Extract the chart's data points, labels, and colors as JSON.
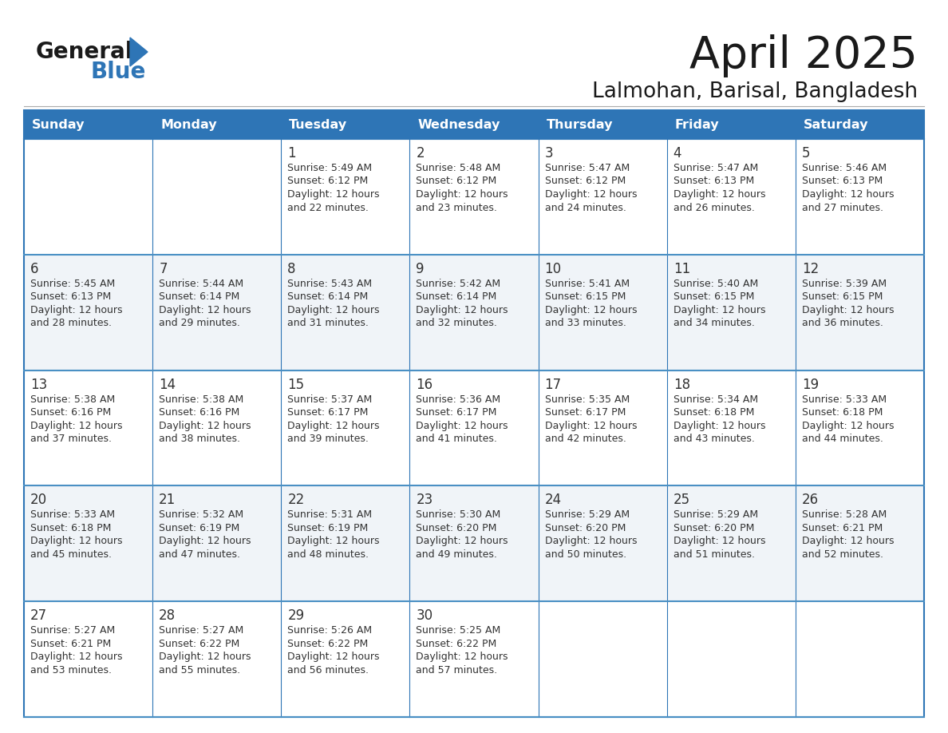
{
  "title": "April 2025",
  "subtitle": "Lalmohan, Barisal, Bangladesh",
  "days_of_week": [
    "Sunday",
    "Monday",
    "Tuesday",
    "Wednesday",
    "Thursday",
    "Friday",
    "Saturday"
  ],
  "header_bg_color": "#2E75B6",
  "header_text_color": "#FFFFFF",
  "cell_bg_even": "#FFFFFF",
  "cell_bg_odd": "#F0F4F8",
  "border_color": "#2E75B6",
  "row_divider_color": "#4A90C4",
  "text_color": "#333333",
  "title_color": "#1a1a1a",
  "logo_general_color": "#1a1a1a",
  "logo_blue_color": "#2E75B6",
  "calendar_data": [
    [
      {
        "day": null,
        "info": null
      },
      {
        "day": null,
        "info": null
      },
      {
        "day": 1,
        "info": "Sunrise: 5:49 AM\nSunset: 6:12 PM\nDaylight: 12 hours\nand 22 minutes."
      },
      {
        "day": 2,
        "info": "Sunrise: 5:48 AM\nSunset: 6:12 PM\nDaylight: 12 hours\nand 23 minutes."
      },
      {
        "day": 3,
        "info": "Sunrise: 5:47 AM\nSunset: 6:12 PM\nDaylight: 12 hours\nand 24 minutes."
      },
      {
        "day": 4,
        "info": "Sunrise: 5:47 AM\nSunset: 6:13 PM\nDaylight: 12 hours\nand 26 minutes."
      },
      {
        "day": 5,
        "info": "Sunrise: 5:46 AM\nSunset: 6:13 PM\nDaylight: 12 hours\nand 27 minutes."
      }
    ],
    [
      {
        "day": 6,
        "info": "Sunrise: 5:45 AM\nSunset: 6:13 PM\nDaylight: 12 hours\nand 28 minutes."
      },
      {
        "day": 7,
        "info": "Sunrise: 5:44 AM\nSunset: 6:14 PM\nDaylight: 12 hours\nand 29 minutes."
      },
      {
        "day": 8,
        "info": "Sunrise: 5:43 AM\nSunset: 6:14 PM\nDaylight: 12 hours\nand 31 minutes."
      },
      {
        "day": 9,
        "info": "Sunrise: 5:42 AM\nSunset: 6:14 PM\nDaylight: 12 hours\nand 32 minutes."
      },
      {
        "day": 10,
        "info": "Sunrise: 5:41 AM\nSunset: 6:15 PM\nDaylight: 12 hours\nand 33 minutes."
      },
      {
        "day": 11,
        "info": "Sunrise: 5:40 AM\nSunset: 6:15 PM\nDaylight: 12 hours\nand 34 minutes."
      },
      {
        "day": 12,
        "info": "Sunrise: 5:39 AM\nSunset: 6:15 PM\nDaylight: 12 hours\nand 36 minutes."
      }
    ],
    [
      {
        "day": 13,
        "info": "Sunrise: 5:38 AM\nSunset: 6:16 PM\nDaylight: 12 hours\nand 37 minutes."
      },
      {
        "day": 14,
        "info": "Sunrise: 5:38 AM\nSunset: 6:16 PM\nDaylight: 12 hours\nand 38 minutes."
      },
      {
        "day": 15,
        "info": "Sunrise: 5:37 AM\nSunset: 6:17 PM\nDaylight: 12 hours\nand 39 minutes."
      },
      {
        "day": 16,
        "info": "Sunrise: 5:36 AM\nSunset: 6:17 PM\nDaylight: 12 hours\nand 41 minutes."
      },
      {
        "day": 17,
        "info": "Sunrise: 5:35 AM\nSunset: 6:17 PM\nDaylight: 12 hours\nand 42 minutes."
      },
      {
        "day": 18,
        "info": "Sunrise: 5:34 AM\nSunset: 6:18 PM\nDaylight: 12 hours\nand 43 minutes."
      },
      {
        "day": 19,
        "info": "Sunrise: 5:33 AM\nSunset: 6:18 PM\nDaylight: 12 hours\nand 44 minutes."
      }
    ],
    [
      {
        "day": 20,
        "info": "Sunrise: 5:33 AM\nSunset: 6:18 PM\nDaylight: 12 hours\nand 45 minutes."
      },
      {
        "day": 21,
        "info": "Sunrise: 5:32 AM\nSunset: 6:19 PM\nDaylight: 12 hours\nand 47 minutes."
      },
      {
        "day": 22,
        "info": "Sunrise: 5:31 AM\nSunset: 6:19 PM\nDaylight: 12 hours\nand 48 minutes."
      },
      {
        "day": 23,
        "info": "Sunrise: 5:30 AM\nSunset: 6:20 PM\nDaylight: 12 hours\nand 49 minutes."
      },
      {
        "day": 24,
        "info": "Sunrise: 5:29 AM\nSunset: 6:20 PM\nDaylight: 12 hours\nand 50 minutes."
      },
      {
        "day": 25,
        "info": "Sunrise: 5:29 AM\nSunset: 6:20 PM\nDaylight: 12 hours\nand 51 minutes."
      },
      {
        "day": 26,
        "info": "Sunrise: 5:28 AM\nSunset: 6:21 PM\nDaylight: 12 hours\nand 52 minutes."
      }
    ],
    [
      {
        "day": 27,
        "info": "Sunrise: 5:27 AM\nSunset: 6:21 PM\nDaylight: 12 hours\nand 53 minutes."
      },
      {
        "day": 28,
        "info": "Sunrise: 5:27 AM\nSunset: 6:22 PM\nDaylight: 12 hours\nand 55 minutes."
      },
      {
        "day": 29,
        "info": "Sunrise: 5:26 AM\nSunset: 6:22 PM\nDaylight: 12 hours\nand 56 minutes."
      },
      {
        "day": 30,
        "info": "Sunrise: 5:25 AM\nSunset: 6:22 PM\nDaylight: 12 hours\nand 57 minutes."
      },
      {
        "day": null,
        "info": null
      },
      {
        "day": null,
        "info": null
      },
      {
        "day": null,
        "info": null
      }
    ]
  ]
}
